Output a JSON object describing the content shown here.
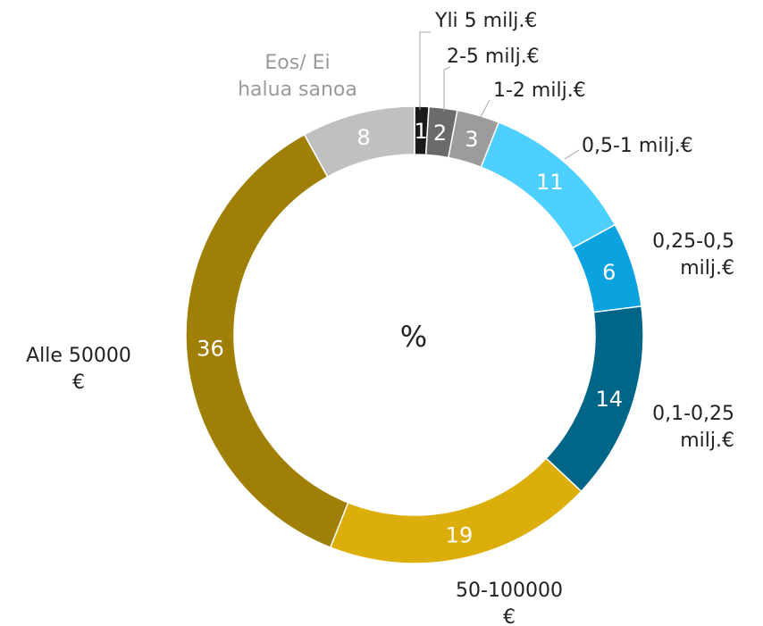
{
  "chart_data": {
    "type": "donut",
    "center_label": "%",
    "slices": [
      {
        "label": [
          "Yli 5 milj.€"
        ],
        "value": 1,
        "color": "#1a1a1a",
        "label_color": "#222222"
      },
      {
        "label": [
          "2-5 milj.€"
        ],
        "value": 2,
        "color": "#6b6b6b",
        "label_color": "#222222"
      },
      {
        "label": [
          "1-2 milj.€"
        ],
        "value": 3,
        "color": "#9c9c9c",
        "label_color": "#222222"
      },
      {
        "label": [
          "0,5-1 milj.€"
        ],
        "value": 11,
        "color": "#4dcfff",
        "label_color": "#222222"
      },
      {
        "label": [
          "0,25-0,5",
          "milj.€"
        ],
        "value": 6,
        "color": "#0aa3e0",
        "label_color": "#222222"
      },
      {
        "label": [
          "0,1-0,25",
          "milj.€"
        ],
        "value": 14,
        "color": "#006688",
        "label_color": "#222222"
      },
      {
        "label": [
          "50-100000",
          "€"
        ],
        "value": 19,
        "color": "#dcae0b",
        "label_color": "#222222"
      },
      {
        "label": [
          "Alle 50000",
          "€"
        ],
        "value": 36,
        "color": "#a07f06",
        "label_color": "#222222"
      },
      {
        "label": [
          "Eos/ Ei",
          "halua sanoa"
        ],
        "value": 8,
        "color": "#c0c0c0",
        "label_color": "#9a9a9a"
      }
    ]
  }
}
